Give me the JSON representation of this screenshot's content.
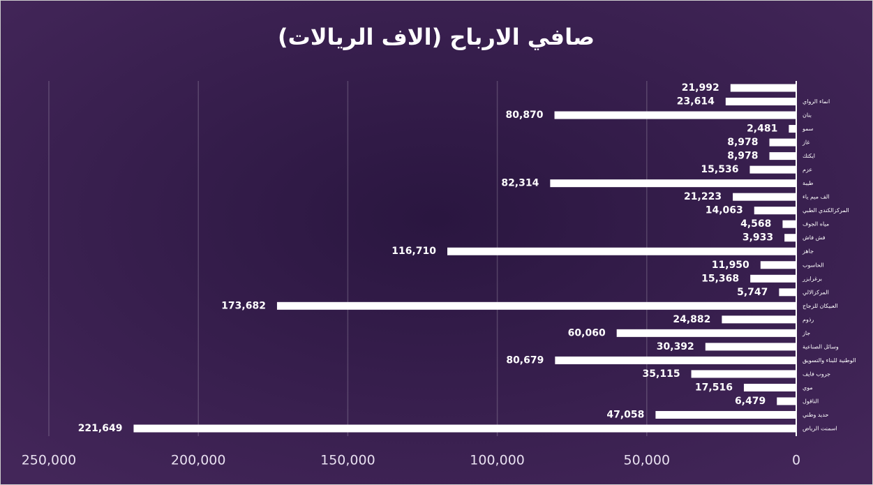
{
  "chart_data": {
    "type": "bar",
    "orientation": "horizontal",
    "x_reversed": true,
    "title": "صافي الارباح (الاف الريالات)",
    "categories": [
      null,
      "انماء الرواي",
      "بنان",
      "سمو",
      "غاز",
      "ايكتك",
      "عزم",
      "طيبة",
      "الف ميم ياء",
      "المركزالكندي الطبي",
      "مياه الجوف",
      "فش فاش",
      "جاهز",
      "الحاسوب",
      "برغرايزر",
      "المركزالالي",
      "العبيكان للزجاج",
      "رذوم",
      "جاز",
      "وسائل الصناعية",
      "الوطنية للبناء والتسويق",
      "جروب فايف",
      "موي",
      "الناقول",
      "حديد وطني",
      "اسمنت الرياض"
    ],
    "values": [
      21992,
      23614,
      80870,
      2481,
      8978,
      8978,
      15536,
      82314,
      21223,
      14063,
      4568,
      3933,
      116710,
      11950,
      15368,
      5747,
      173682,
      24882,
      60060,
      30392,
      80679,
      35115,
      17516,
      6479,
      47058,
      221649
    ],
    "value_labels": [
      "21,992",
      "23,614",
      "80,870",
      "2,481",
      "8,978",
      "8,978",
      "15,536",
      "82,314",
      "21,223",
      "14,063",
      "4,568",
      "3,933",
      "116,710",
      "11,950",
      "15,368",
      "5,747",
      "173,682",
      "24,882",
      "60,060",
      "30,392",
      "80,679",
      "35,115",
      "17,516",
      "6,479",
      "47,058",
      "221,649"
    ],
    "color": "#ffffff",
    "xlim": [
      0,
      250000
    ],
    "xticks": [
      0,
      {
        "value": 50000,
        "label": "50,000"
      },
      {
        "value": 100000,
        "label": "100,000"
      },
      {
        "value": 150000,
        "label": "150,000"
      },
      {
        "value": 200000,
        "label": "200,000"
      },
      {
        "value": 250000,
        "label": "250,000"
      }
    ],
    "grid": true
  }
}
